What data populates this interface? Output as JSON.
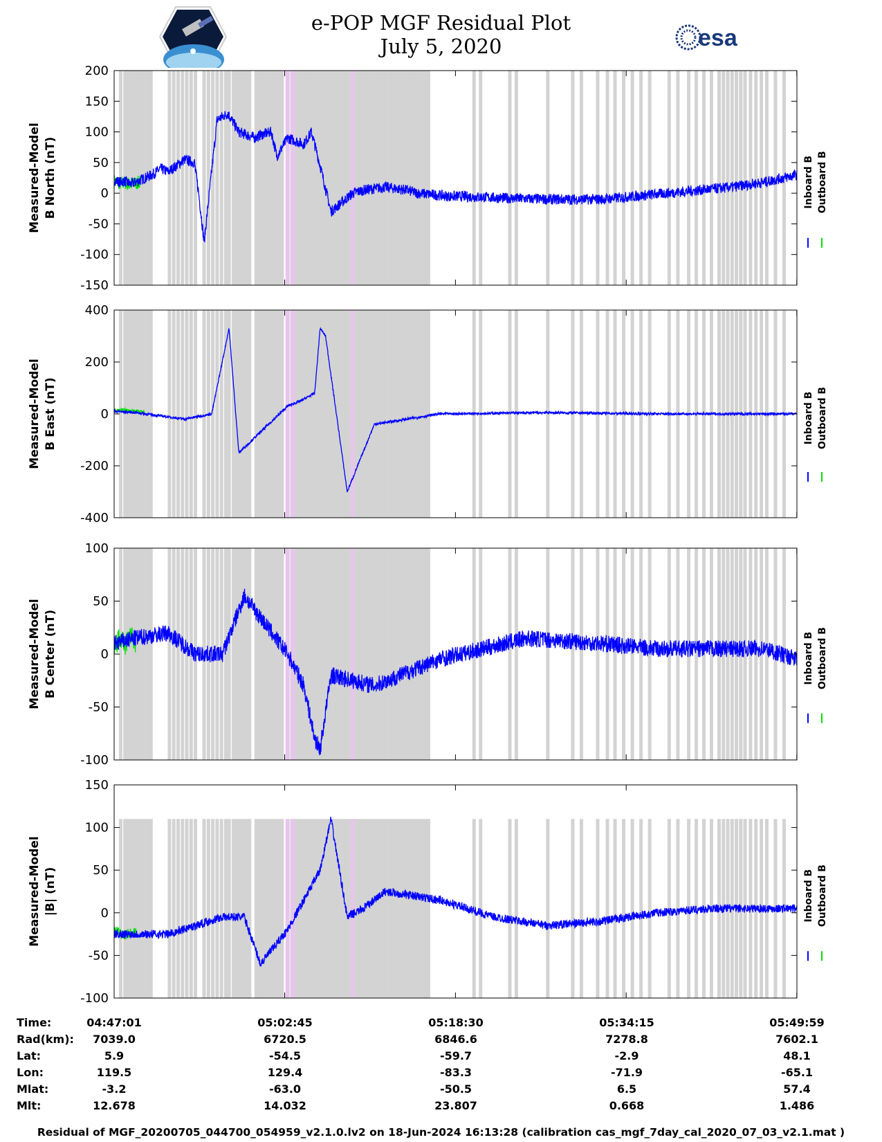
{
  "header": {
    "title_line1": "e-POP MGF Residual Plot",
    "title_line2": "July 5, 2020",
    "logo_left": "cassiope-mission-logo",
    "logo_right_text": "esa"
  },
  "colors": {
    "inboard": "#0000ff",
    "outboard": "#00e000",
    "grey_band": "#d3d3d3",
    "pink_band": "#e6c6ec",
    "axis": "#000000"
  },
  "legend": {
    "inboard_label": "Inboard B",
    "outboard_label": "Outboard B"
  },
  "chart_data": [
    {
      "type": "line",
      "ylabel_line1": "Measured-Model",
      "ylabel_line2": "B North (nT)",
      "ylim": [
        -150,
        200
      ],
      "yticks": [
        200,
        150,
        100,
        50,
        0,
        -50,
        -100,
        -150
      ],
      "series": [
        {
          "name": "Inboard B",
          "x": [
            0,
            0.2,
            0.6,
            0.9,
            1.2,
            1.5,
            2.0,
            3.5,
            4.3,
            5.0,
            6.5,
            7.4,
            7.8,
            8.3,
            9.5,
            10.5,
            11.5,
            13.0,
            13.5,
            14.5,
            15.0,
            16.0,
            17.5,
            18.2,
            19.0,
            20.0,
            22.0,
            23.0,
            25.0,
            27.0,
            28.0,
            31.0,
            32.0,
            36.0,
            40.0,
            45.0,
            48.0,
            51.0,
            54.0,
            57.0,
            60.0,
            62.98
          ],
          "y": [
            22,
            20,
            18,
            20,
            17,
            15,
            18,
            30,
            40,
            35,
            55,
            50,
            0,
            -80,
            120,
            130,
            100,
            90,
            95,
            100,
            60,
            90,
            80,
            100,
            45,
            -30,
            0,
            5,
            10,
            5,
            0,
            -5,
            -5,
            -8,
            -10,
            -10,
            -5,
            0,
            5,
            10,
            18,
            30
          ]
        },
        {
          "name": "Outboard B",
          "x": [
            0,
            0.5,
            1.0,
            1.5,
            2.0,
            2.5
          ],
          "y": [
            20,
            16,
            17,
            14,
            16,
            18
          ]
        }
      ]
    },
    {
      "type": "line",
      "ylabel_line1": "Measured-Model",
      "ylabel_line2": "B East (nT)",
      "ylim": [
        -400,
        400
      ],
      "yticks": [
        400,
        200,
        0,
        -200,
        -400
      ],
      "series": [
        {
          "name": "Inboard B",
          "x": [
            0,
            2.0,
            6.5,
            9.0,
            10.6,
            11.5,
            16.0,
            17.2,
            18.5,
            19.0,
            19.5,
            21.5,
            24.0,
            30.0,
            40.0,
            50.0,
            62.98
          ],
          "y": [
            10,
            5,
            -20,
            0,
            330,
            -150,
            30,
            50,
            80,
            330,
            300,
            -300,
            -40,
            0,
            5,
            0,
            0
          ]
        },
        {
          "name": "Outboard B",
          "x": [
            0,
            1.0,
            2.0,
            2.8
          ],
          "y": [
            12,
            15,
            10,
            8
          ]
        }
      ]
    },
    {
      "type": "line",
      "ylabel_line1": "Measured-Model",
      "ylabel_line2": "B Center (nT)",
      "ylim": [
        -100,
        100
      ],
      "yticks": [
        100,
        50,
        0,
        -50,
        -100
      ],
      "series": [
        {
          "name": "Inboard B",
          "x": [
            0,
            2.0,
            5.0,
            7.5,
            10.0,
            12.0,
            16.0,
            17.5,
            18.5,
            19.0,
            20.0,
            24.0,
            30.0,
            38.0,
            45.0,
            50.0,
            55.0,
            60.0,
            62.98
          ],
          "y": [
            10,
            15,
            20,
            0,
            0,
            55,
            0,
            -30,
            -80,
            -90,
            -20,
            -30,
            -5,
            15,
            10,
            5,
            5,
            5,
            -5
          ]
        },
        {
          "name": "Outboard B",
          "x": [
            0,
            0.5,
            1.0,
            1.5,
            2.0
          ],
          "y": [
            5,
            15,
            8,
            18,
            10
          ]
        }
      ]
    },
    {
      "type": "line",
      "ylabel_line1": "Measured-Model",
      "ylabel_line2": "|B| (nT)",
      "ylim": [
        -100,
        150
      ],
      "yticks": [
        150,
        100,
        50,
        0,
        -50,
        -100
      ],
      "series": [
        {
          "name": "Inboard B",
          "x": [
            0,
            5.0,
            10.0,
            12.0,
            13.5,
            16.0,
            19.0,
            20.0,
            21.5,
            23.0,
            25.0,
            30.0,
            35.0,
            40.0,
            45.0,
            50.0,
            55.0,
            62.98
          ],
          "y": [
            -25,
            -25,
            -5,
            -5,
            -60,
            -20,
            50,
            110,
            -5,
            5,
            25,
            15,
            -5,
            -15,
            -10,
            0,
            5,
            5
          ]
        },
        {
          "name": "Outboard B",
          "x": [
            0,
            1.0,
            2.0
          ],
          "y": [
            -22,
            -25,
            -24
          ]
        }
      ]
    }
  ],
  "time_axis": {
    "xlim_minutes": [
      0,
      62.98
    ],
    "tick_minutes": [
      0,
      15.733,
      31.483,
      47.233,
      62.967
    ],
    "unit": "minutes since 04:47:01",
    "grey_bands_minutes": [
      0.6,
      1.0,
      1.3,
      1.6,
      1.9,
      2.2,
      2.5,
      2.8,
      3.1,
      3.4,
      5.1,
      5.5,
      5.9,
      6.3,
      6.7,
      7.1,
      7.5,
      8.3,
      8.7,
      9.1,
      9.5,
      9.9,
      10.3,
      10.6,
      11.0,
      11.3,
      11.6,
      11.9,
      12.2,
      12.5,
      13.1,
      13.4,
      13.7,
      14.0,
      14.3,
      14.6,
      14.9,
      15.2,
      15.5,
      16.4,
      16.7,
      17.0,
      17.3,
      17.6,
      17.9,
      18.2,
      18.5,
      18.8,
      19.1,
      19.4,
      19.7,
      20.0,
      20.3,
      20.6,
      20.9,
      21.2,
      21.5,
      21.8,
      22.1,
      22.4,
      22.7,
      23.0,
      23.3,
      23.6,
      23.9,
      24.2,
      24.5,
      24.8,
      25.1,
      25.4,
      25.7,
      26.0,
      26.3,
      26.6,
      26.9,
      27.2,
      27.5,
      27.8,
      28.1,
      28.4,
      28.7,
      29.0,
      33.2,
      33.8,
      36.5,
      37.1,
      40.0,
      42.3,
      43.1,
      44.6,
      45.5,
      46.2,
      47.0,
      47.8,
      48.6,
      49.4,
      51.2,
      52.0,
      53.0,
      53.7,
      54.4,
      55.1,
      55.8,
      56.2,
      56.6,
      57.0,
      57.4,
      57.8,
      58.2,
      58.7,
      59.2,
      59.7,
      60.2,
      61.0,
      61.8
    ],
    "pink_bands_minutes": [
      16.0,
      16.5,
      22.0
    ]
  },
  "footer": {
    "labels": [
      "Time:",
      "Rad(km):",
      "Lat:",
      "Lon:",
      "Mlat:",
      "Mlt:"
    ],
    "columns": [
      {
        "time": "04:47:01",
        "rad": "7039.0",
        "lat": "5.9",
        "lon": "119.5",
        "mlat": "-3.2",
        "mlt": "12.678"
      },
      {
        "time": "05:02:45",
        "rad": "6720.5",
        "lat": "-54.5",
        "lon": "129.4",
        "mlat": "-63.0",
        "mlt": "14.032"
      },
      {
        "time": "05:18:30",
        "rad": "6846.6",
        "lat": "-59.7",
        "lon": "-83.3",
        "mlat": "-50.5",
        "mlt": "23.807"
      },
      {
        "time": "05:34:15",
        "rad": "7278.8",
        "lat": "-2.9",
        "lon": "-71.9",
        "mlat": "6.5",
        "mlt": "0.668"
      },
      {
        "time": "05:49:59",
        "rad": "7602.1",
        "lat": "48.1",
        "lon": "-65.1",
        "mlat": "57.4",
        "mlt": "1.486"
      }
    ],
    "caption": "Residual of MGF_20200705_044700_054959_v2.1.0.lv2 on 18-Jun-2024 16:13:28 (calibration cas_mgf_7day_cal_2020_07_03_v2.1.mat )"
  }
}
